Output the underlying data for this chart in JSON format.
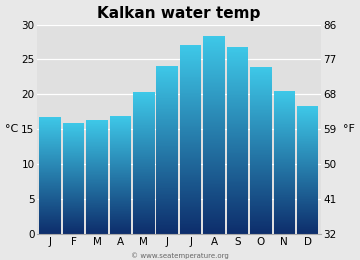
{
  "title": "Kalkan water temp",
  "months": [
    "J",
    "F",
    "M",
    "A",
    "M",
    "J",
    "J",
    "A",
    "S",
    "O",
    "N",
    "D"
  ],
  "values_c": [
    16.8,
    15.9,
    16.3,
    16.9,
    20.3,
    24.1,
    27.0,
    28.3,
    26.8,
    23.9,
    20.5,
    18.3
  ],
  "ylim_c": [
    0,
    30
  ],
  "yticks_c": [
    0,
    5,
    10,
    15,
    20,
    25,
    30
  ],
  "yticks_f": [
    32,
    41,
    50,
    59,
    68,
    77,
    86
  ],
  "ylabel_left": "°C",
  "ylabel_right": "°F",
  "bar_color_bottom": "#0d2d6b",
  "bar_color_top": "#3ec8e8",
  "background_color": "#e8e8e8",
  "plot_bg_color": "#e0e0e0",
  "grid_color": "#ffffff",
  "title_fontsize": 11,
  "axis_fontsize": 8,
  "tick_fontsize": 7.5,
  "bar_width": 0.92,
  "watermark": "© www.seatemperature.org"
}
